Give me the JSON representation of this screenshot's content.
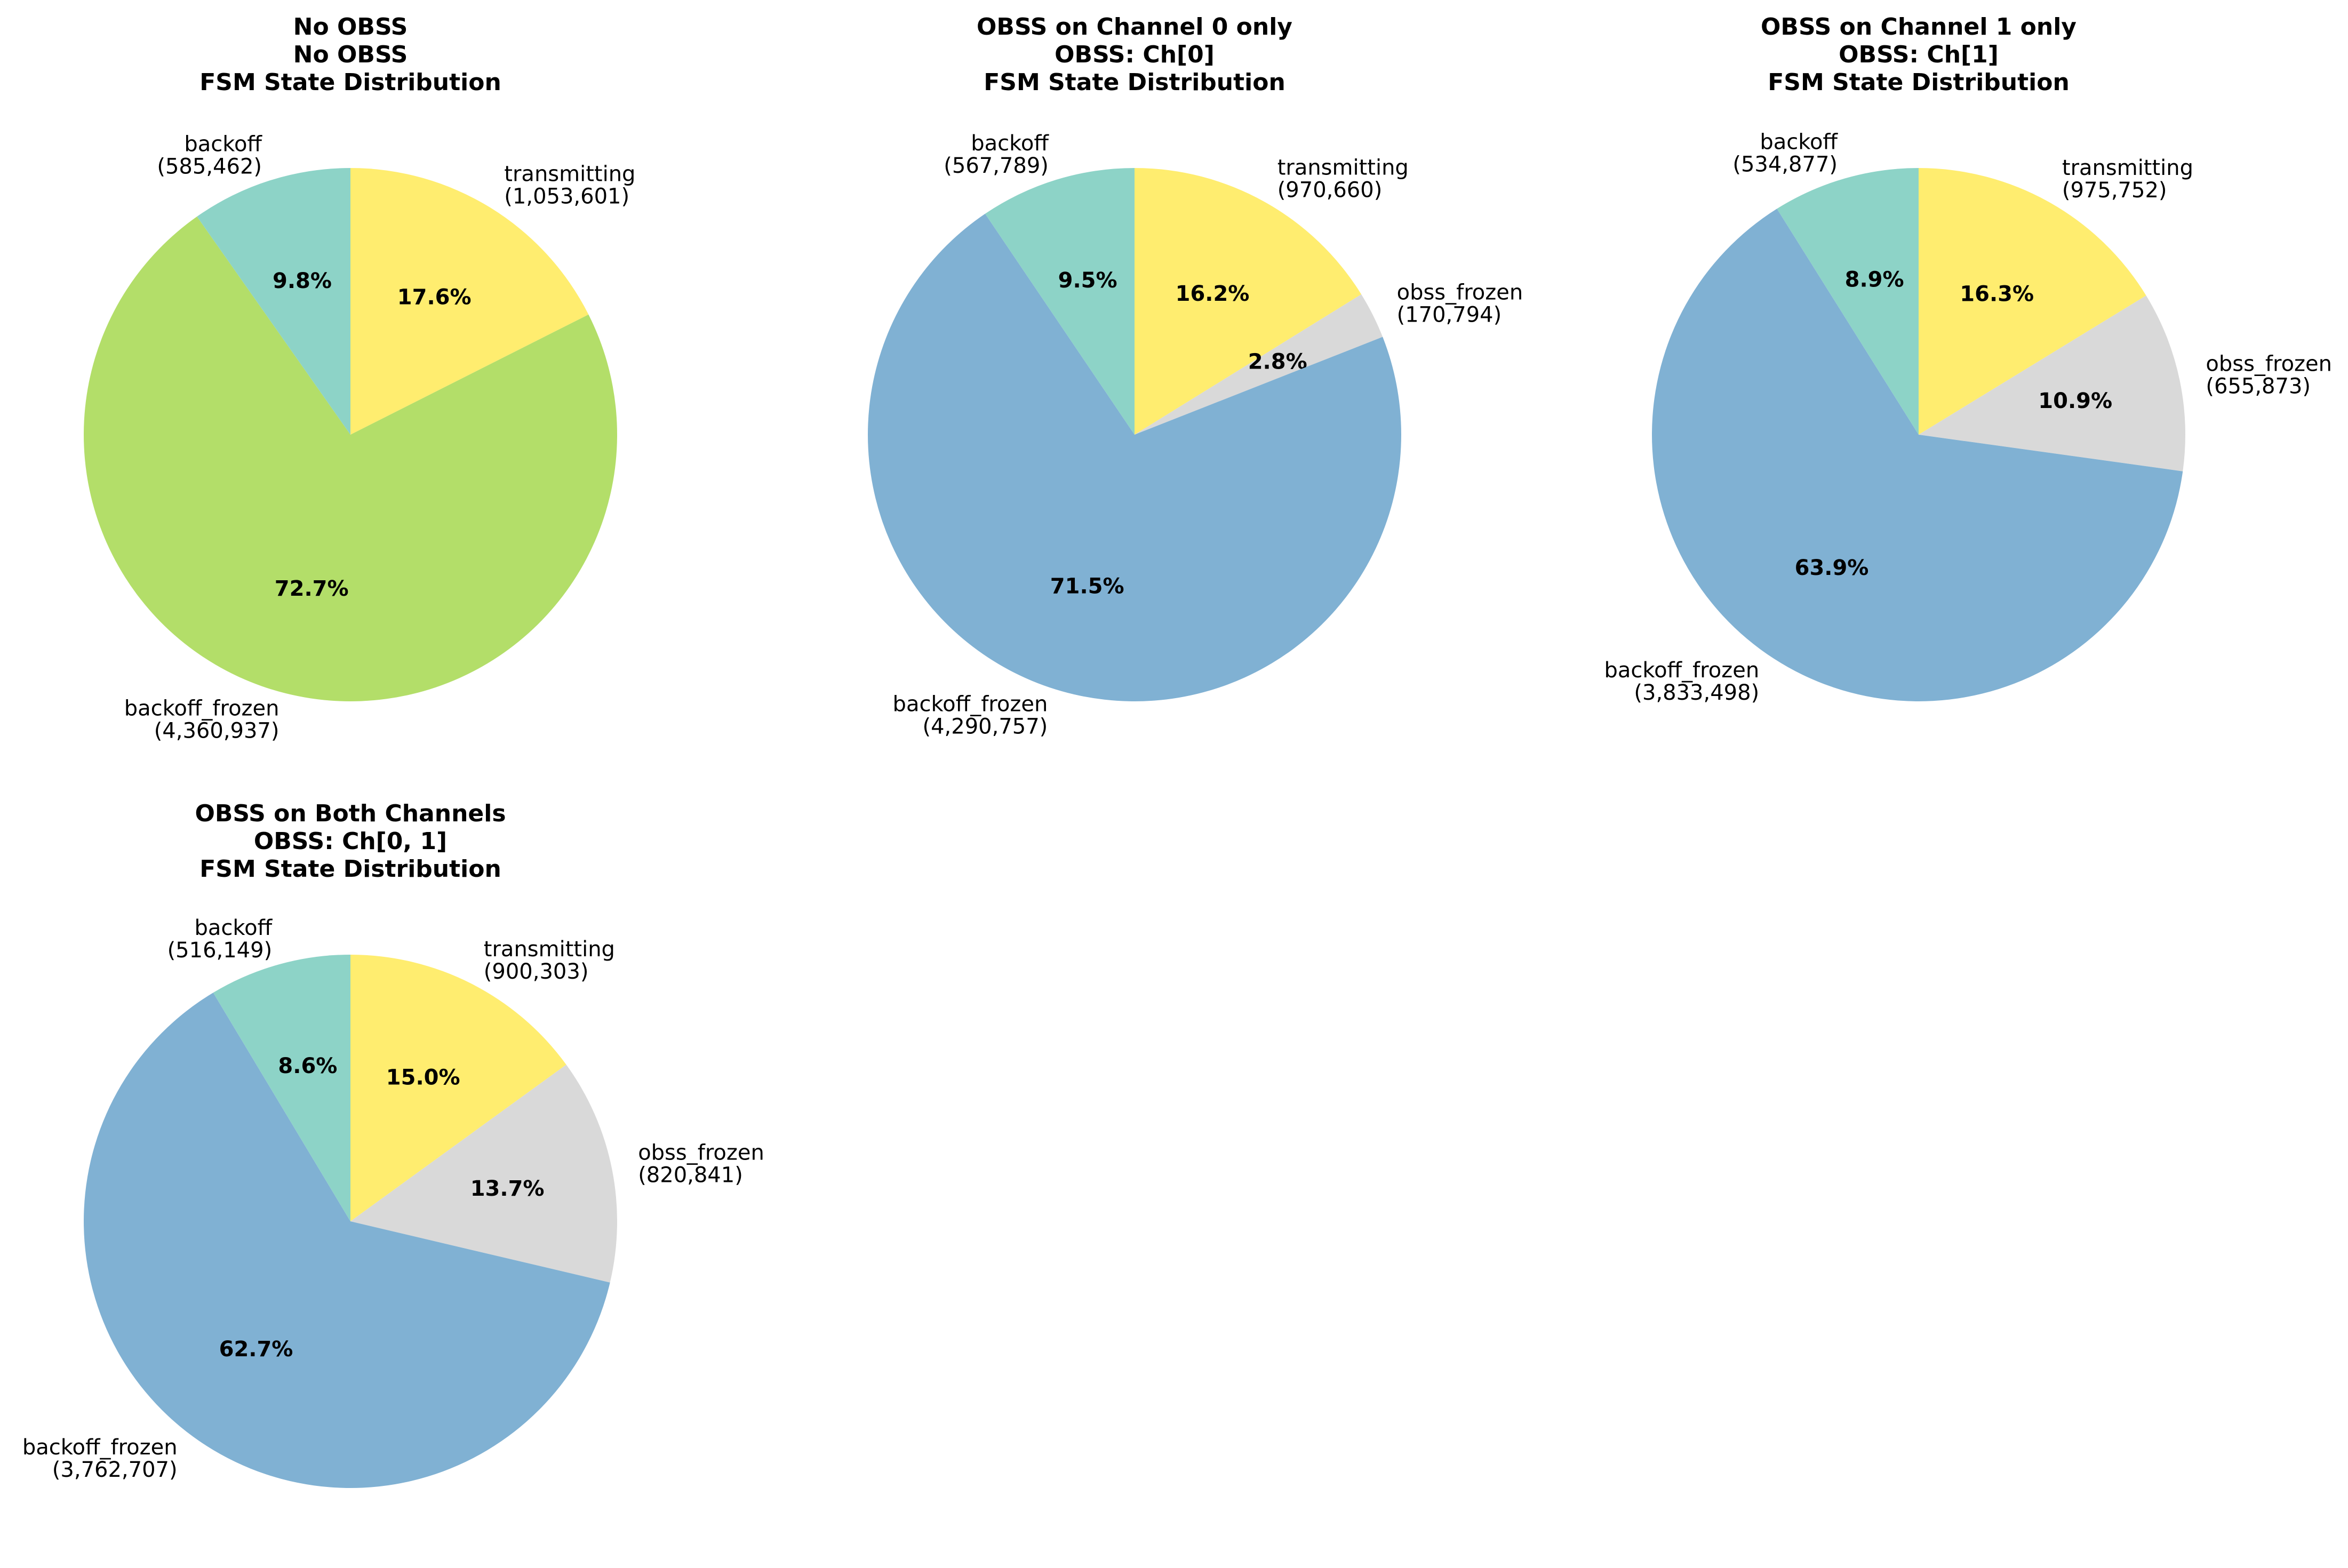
{
  "colors": {
    "backoff": "#8dd3c7",
    "transmitting": "#ffed6f",
    "backoff_frozen_no_obss": "#b3de69",
    "backoff_frozen": "#80b1d3",
    "obss_frozen": "#d9d9d9"
  },
  "chart_data": [
    {
      "type": "pie",
      "title": [
        "No OBSS",
        "No OBSS",
        "FSM State Distribution"
      ],
      "start_angle_deg": 90,
      "direction": "clockwise",
      "slices": [
        {
          "label": "transmitting",
          "count": "(1,053,601)",
          "value": 1053601,
          "pct": "17.6%",
          "color_key": "transmitting"
        },
        {
          "label": "backoff_frozen",
          "count": "(4,360,937)",
          "value": 4360937,
          "pct": "72.7%",
          "color_key": "backoff_frozen_no_obss"
        },
        {
          "label": "backoff",
          "count": "(585,462)",
          "value": 585462,
          "pct": "9.8%",
          "color_key": "backoff"
        }
      ]
    },
    {
      "type": "pie",
      "title": [
        "OBSS on Channel 0 only",
        "OBSS: Ch[0]",
        "FSM State Distribution"
      ],
      "start_angle_deg": 90,
      "direction": "clockwise",
      "slices": [
        {
          "label": "transmitting",
          "count": "(970,660)",
          "value": 970660,
          "pct": "16.2%",
          "color_key": "transmitting"
        },
        {
          "label": "obss_frozen",
          "count": "(170,794)",
          "value": 170794,
          "pct": "2.8%",
          "color_key": "obss_frozen"
        },
        {
          "label": "backoff_frozen",
          "count": "(4,290,757)",
          "value": 4290757,
          "pct": "71.5%",
          "color_key": "backoff_frozen"
        },
        {
          "label": "backoff",
          "count": "(567,789)",
          "value": 567789,
          "pct": "9.5%",
          "color_key": "backoff"
        }
      ]
    },
    {
      "type": "pie",
      "title": [
        "OBSS on Channel 1 only",
        "OBSS: Ch[1]",
        "FSM State Distribution"
      ],
      "start_angle_deg": 90,
      "direction": "clockwise",
      "slices": [
        {
          "label": "transmitting",
          "count": "(975,752)",
          "value": 975752,
          "pct": "16.3%",
          "color_key": "transmitting"
        },
        {
          "label": "obss_frozen",
          "count": "(655,873)",
          "value": 655873,
          "pct": "10.9%",
          "color_key": "obss_frozen"
        },
        {
          "label": "backoff_frozen",
          "count": "(3,833,498)",
          "value": 3833498,
          "pct": "63.9%",
          "color_key": "backoff_frozen"
        },
        {
          "label": "backoff",
          "count": "(534,877)",
          "value": 534877,
          "pct": "8.9%",
          "color_key": "backoff"
        }
      ]
    },
    {
      "type": "pie",
      "title": [
        "OBSS on Both Channels",
        "OBSS: Ch[0, 1]",
        "FSM State Distribution"
      ],
      "start_angle_deg": 90,
      "direction": "clockwise",
      "slices": [
        {
          "label": "transmitting",
          "count": "(900,303)",
          "value": 900303,
          "pct": "15.0%",
          "color_key": "transmitting"
        },
        {
          "label": "obss_frozen",
          "count": "(820,841)",
          "value": 820841,
          "pct": "13.7%",
          "color_key": "obss_frozen"
        },
        {
          "label": "backoff_frozen",
          "count": "(3,762,707)",
          "value": 3762707,
          "pct": "62.7%",
          "color_key": "backoff_frozen"
        },
        {
          "label": "backoff",
          "count": "(516,149)",
          "value": 516149,
          "pct": "8.6%",
          "color_key": "backoff"
        }
      ]
    }
  ]
}
